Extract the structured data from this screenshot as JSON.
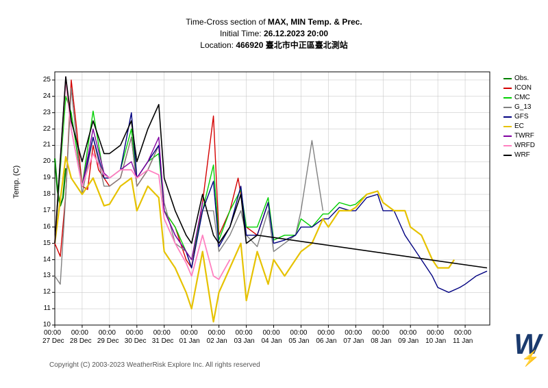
{
  "title": {
    "line1_prefix": "Time-Cross section of ",
    "line1_bold": "MAX, MIN Temp. & Prec.",
    "line2_prefix": "Initial Time: ",
    "line2_bold": "26.12.2023 20:00",
    "line3_prefix": "Location: ",
    "line3_bold": "466920 臺北市中正區臺北測站"
  },
  "ylabel": "Temp. (C)",
  "copyright": "Copyright (C) 2003-2023 WeatherRisk Explore Inc. All rights reserved",
  "logo_text": "W",
  "chart": {
    "type": "line",
    "background_color": "#ffffff",
    "grid_color": "#bfbfbf",
    "axis_color": "#000000",
    "line_width": 1.4,
    "xlim": [
      0,
      15.9
    ],
    "ylim": [
      10,
      25.5
    ],
    "yticks": [
      10,
      11,
      12,
      13,
      14,
      15,
      16,
      17,
      18,
      19,
      20,
      21,
      22,
      23,
      24,
      25
    ],
    "xticks": [
      0,
      1,
      2,
      3,
      4,
      5,
      6,
      7,
      8,
      9,
      10,
      11,
      12,
      13,
      14,
      15
    ],
    "xtick_labels_top": [
      "00:00",
      "00:00",
      "00:00",
      "00:00",
      "00:00",
      "00:00",
      "00:00",
      "00:00",
      "00:00",
      "00:00",
      "00:00",
      "00:00",
      "00:00",
      "00:00",
      "00:00",
      "00:00"
    ],
    "xtick_labels_bot": [
      "27 Dec",
      "28 Dec",
      "29 Dec",
      "30 Dec",
      "31 Dec",
      "01 Jan",
      "02 Jan",
      "03 Jan",
      "04 Jan",
      "05 Jan",
      "06 Jan",
      "07 Jan",
      "08 Jan",
      "09 Jan",
      "10 Jan",
      "11 Jan"
    ],
    "series": [
      {
        "name": "Obs.",
        "color": "#008000",
        "width": 2.2,
        "x": [
          0,
          0.1,
          0.2,
          0.3,
          0.4
        ],
        "y": [
          20.2,
          18.2,
          17.3,
          17.8,
          19.6
        ]
      },
      {
        "name": "ICON",
        "color": "#d40000",
        "width": 1.4,
        "x": [
          0,
          0.2,
          0.4,
          0.6,
          0.8,
          1,
          1.2,
          1.4,
          1.6,
          2,
          2.4,
          2.8,
          3,
          3.4,
          3.8,
          4,
          4.4,
          4.8,
          5,
          5.4,
          5.8,
          6,
          6.4,
          6.7,
          7,
          7.4,
          7.8
        ],
        "y": [
          15,
          14.2,
          18,
          25,
          22,
          18.5,
          18.3,
          21,
          19.5,
          18.5,
          19,
          21.5,
          18.5,
          19.5,
          21,
          17,
          16,
          14,
          13.5,
          17.5,
          22.8,
          15.5,
          17,
          19,
          16,
          15.5,
          17.5
        ]
      },
      {
        "name": "CMC",
        "color": "#00d000",
        "width": 1.4,
        "x": [
          0,
          0.4,
          0.6,
          1,
          1.4,
          1.8,
          2,
          2.4,
          2.8,
          3,
          3.4,
          3.8,
          4,
          4.4,
          4.8,
          5,
          5.4,
          5.8,
          6,
          6.4,
          6.8,
          7,
          7.4,
          7.8,
          8,
          8.4,
          8.8,
          9,
          9.4,
          9.8,
          10,
          10.4,
          10.8,
          11,
          11.4,
          11.8
        ],
        "y": [
          15,
          24,
          23,
          18.5,
          23.1,
          19,
          19,
          19.5,
          22,
          19,
          20,
          20.5,
          17,
          16,
          14.5,
          14,
          17,
          19.8,
          15.2,
          17,
          18.3,
          16,
          16,
          17.8,
          15.2,
          15.5,
          15.5,
          16.5,
          16,
          16.8,
          16.8,
          17.5,
          17.3,
          17.4,
          18,
          18.2
        ]
      },
      {
        "name": "G_13",
        "color": "#808080",
        "width": 1.4,
        "x": [
          0,
          0.2,
          0.4,
          0.6,
          1,
          1.4,
          1.8,
          2,
          2.4,
          2.8,
          3,
          3.4,
          3.8,
          4,
          4.4,
          4.8,
          5,
          5.4,
          5.8,
          6,
          6.4,
          6.8,
          7,
          7.4,
          7.8,
          8,
          8.4,
          8.8,
          9,
          9.4,
          9.8
        ],
        "y": [
          13,
          12.5,
          18,
          24.5,
          18,
          21.5,
          18.5,
          18.5,
          19,
          21.5,
          18.5,
          19.5,
          21,
          17.5,
          15,
          14.5,
          13.5,
          17,
          17,
          14.5,
          15.5,
          17,
          15.5,
          14.8,
          17,
          14.5,
          15,
          15.5,
          17,
          21.3,
          17
        ]
      },
      {
        "name": "GFS",
        "color": "#000080",
        "width": 1.4,
        "x": [
          0,
          0.4,
          0.6,
          1,
          1.4,
          1.8,
          2,
          2.4,
          2.8,
          3,
          3.4,
          3.8,
          4,
          4.4,
          4.8,
          5,
          5.4,
          5.8,
          6,
          6.4,
          6.8,
          7,
          7.4,
          7.8,
          8,
          8.4,
          8.8,
          9,
          9.4,
          9.8,
          10,
          10.4,
          10.8,
          11,
          11.4,
          11.8,
          12,
          12.4,
          12.8,
          13,
          13.4,
          13.8,
          14,
          14.4,
          14.8,
          15,
          15.4,
          15.8
        ],
        "y": [
          15,
          25,
          22,
          18.5,
          21.5,
          19,
          19,
          19.5,
          23,
          19,
          20,
          21,
          17,
          15.5,
          14.5,
          13.5,
          17,
          18.8,
          14.8,
          16,
          18.5,
          15.5,
          15.5,
          17.5,
          15,
          15.2,
          15.5,
          16,
          16,
          16.5,
          16.5,
          17.2,
          17,
          17,
          17.8,
          18,
          17,
          17,
          15.5,
          15,
          14,
          13,
          12.3,
          12,
          12.3,
          12.5,
          13,
          13.3
        ]
      },
      {
        "name": "EC",
        "color": "#e6c200",
        "width": 2.2,
        "x": [
          0,
          0.4,
          0.6,
          1,
          1.4,
          1.8,
          2,
          2.4,
          2.8,
          3,
          3.4,
          3.8,
          4,
          4.4,
          4.8,
          5,
          5.4,
          5.8,
          6,
          6.4,
          6.8,
          7,
          7.4,
          7.8,
          8,
          8.4,
          8.8,
          9,
          9.4,
          9.8,
          10,
          10.4,
          10.8,
          11,
          11.4,
          11.8,
          12,
          12.4,
          12.8,
          13,
          13.4,
          13.8,
          14,
          14.4,
          14.6
        ],
        "y": [
          15,
          20.3,
          19,
          18,
          19,
          17.3,
          17.4,
          18.5,
          19,
          17,
          18.5,
          17.8,
          14.5,
          13.5,
          12,
          11,
          14.5,
          10.2,
          12,
          13.5,
          15,
          11.5,
          14.5,
          12.5,
          14,
          13,
          14,
          14.5,
          15,
          16.5,
          16,
          17,
          17,
          17.2,
          18,
          18.2,
          17.5,
          17,
          17,
          16,
          15.5,
          14,
          13.5,
          13.5,
          14
        ]
      },
      {
        "name": "TWRF",
        "color": "#8000a0",
        "width": 1.4,
        "x": [
          0,
          0.4,
          0.6,
          1,
          1.4,
          1.8,
          2,
          2.4,
          2.8,
          3,
          3.4,
          3.8,
          4,
          4.4,
          4.8,
          5,
          5.4
        ],
        "y": [
          15,
          25.2,
          22,
          18.5,
          22,
          19.3,
          19,
          19.5,
          20,
          19,
          20,
          21.5,
          17,
          15.5,
          14.5,
          14,
          17.5
        ]
      },
      {
        "name": "WRFD",
        "color": "#ff80c0",
        "width": 1.8,
        "x": [
          0,
          0.4,
          0.6,
          1,
          1.4,
          1.8,
          2,
          2.4,
          2.8,
          3,
          3.4,
          3.8,
          4,
          4.4,
          4.8,
          5,
          5.4,
          5.8,
          6,
          6.4
        ],
        "y": [
          15,
          25,
          22,
          18.5,
          20.5,
          19.2,
          19,
          19.5,
          19.5,
          19,
          19.5,
          19.2,
          16.5,
          15,
          13.8,
          13,
          15.5,
          13,
          12.8,
          14
        ]
      },
      {
        "name": "WRF",
        "color": "#000000",
        "width": 1.6,
        "x": [
          0,
          0.4,
          0.6,
          1,
          1.4,
          1.8,
          2,
          2.4,
          2.8,
          3,
          3.4,
          3.8,
          4,
          4.4,
          4.8,
          5,
          5.4,
          5.8,
          6,
          6.4,
          6.8,
          7,
          7.4,
          15.8
        ],
        "y": [
          15,
          25.2,
          22.5,
          20,
          22.5,
          20.5,
          20.5,
          21,
          22.5,
          20,
          22,
          23.5,
          19,
          17,
          15.5,
          15,
          18,
          15.5,
          15,
          16,
          18,
          15,
          15.5,
          13.5
        ]
      }
    ]
  },
  "legend": [
    {
      "label": "Obs.",
      "color": "#008000"
    },
    {
      "label": "ICON",
      "color": "#d40000"
    },
    {
      "label": "CMC",
      "color": "#00d000"
    },
    {
      "label": "G_13",
      "color": "#808080"
    },
    {
      "label": "GFS",
      "color": "#000080"
    },
    {
      "label": "EC",
      "color": "#e6c200"
    },
    {
      "label": "TWRF",
      "color": "#8000a0"
    },
    {
      "label": "WRFD",
      "color": "#ff80c0"
    },
    {
      "label": "WRF",
      "color": "#000000"
    }
  ]
}
